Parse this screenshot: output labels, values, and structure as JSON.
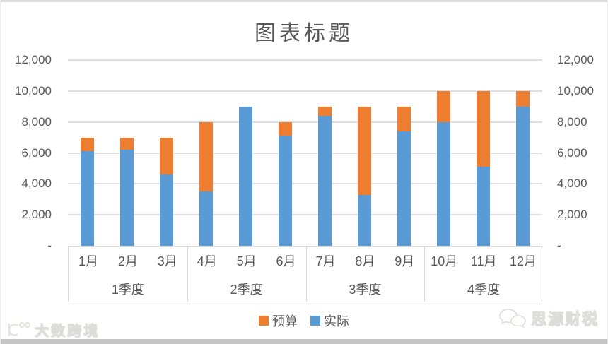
{
  "title": "图表标题",
  "watermarks": {
    "bottom_left": "大数跨境",
    "bottom_right": "思源财税"
  },
  "legend": [
    {
      "label": "预算",
      "color": "#ED7D31"
    },
    {
      "label": "实际",
      "color": "#5B9BD5"
    }
  ],
  "chart_data": {
    "type": "bar",
    "stacked": true,
    "title": "图表标题",
    "categories": [
      "1月",
      "2月",
      "3月",
      "4月",
      "5月",
      "6月",
      "7月",
      "8月",
      "9月",
      "10月",
      "11月",
      "12月"
    ],
    "group_labels": [
      "1季度",
      "2季度",
      "3季度",
      "4季度"
    ],
    "series": [
      {
        "name": "实际",
        "color": "#5B9BD5",
        "values": [
          6100,
          6200,
          4600,
          3500,
          9000,
          7100,
          8400,
          3300,
          7400,
          8000,
          5100,
          9000
        ]
      },
      {
        "name": "预算",
        "color": "#ED7D31",
        "values": [
          900,
          800,
          2400,
          4500,
          0,
          900,
          600,
          5700,
          1600,
          2000,
          4900,
          1000
        ]
      }
    ],
    "totals": [
      7000,
      7000,
      7000,
      8000,
      9000,
      8000,
      9000,
      9000,
      9000,
      10000,
      10000,
      10000
    ],
    "ylim": [
      0,
      12000
    ],
    "y_step": 2000,
    "y_ticks": [
      "12,000",
      "10,000",
      "8,000",
      "6,000",
      "4,000",
      "2,000",
      "-"
    ],
    "dual_axis": true,
    "grid": true,
    "legend_position": "bottom"
  }
}
